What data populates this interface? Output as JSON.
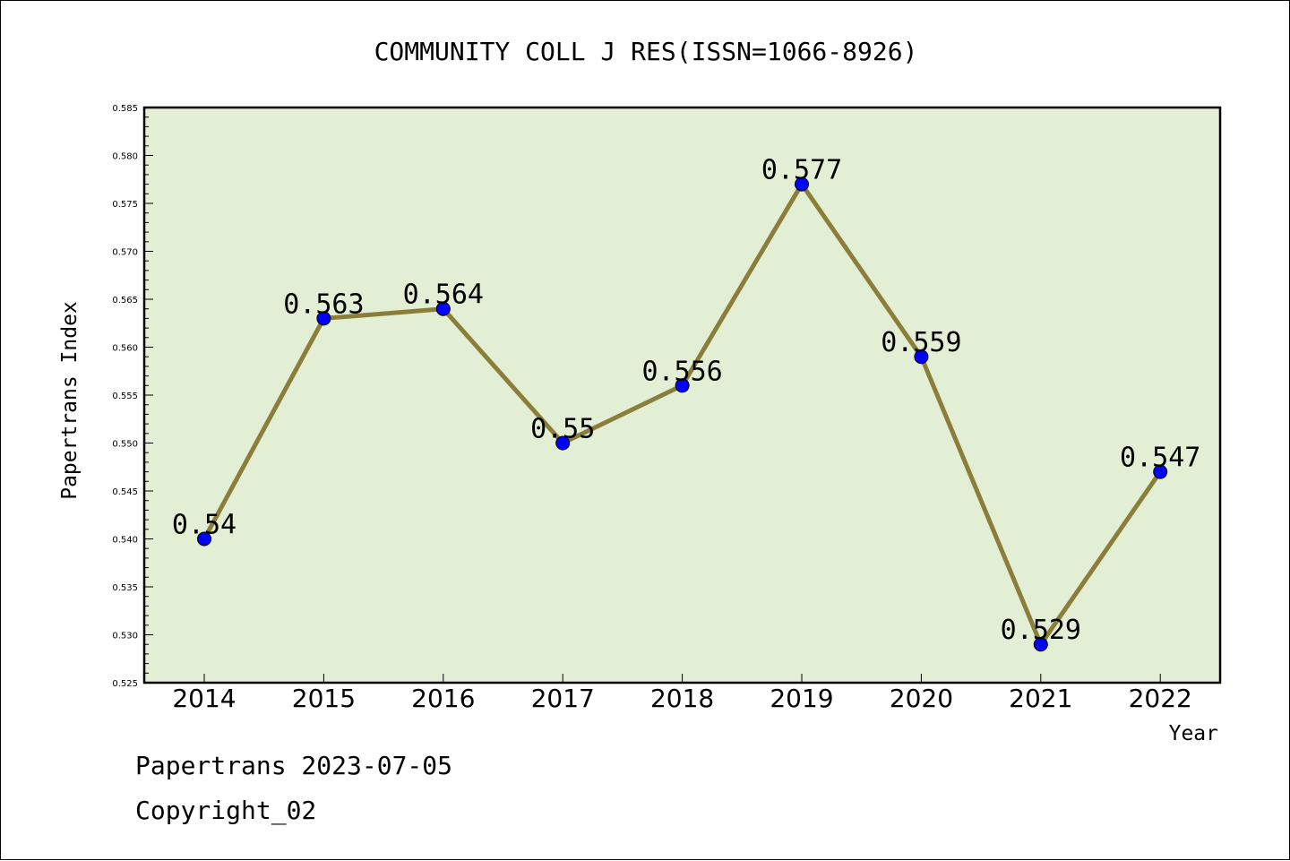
{
  "chart_data": {
    "type": "line",
    "title": "COMMUNITY COLL J RES(ISSN=1066-8926)",
    "xlabel": "Year",
    "ylabel": "Papertrans Index",
    "categories": [
      "2014",
      "2015",
      "2016",
      "2017",
      "2018",
      "2019",
      "2020",
      "2021",
      "2022"
    ],
    "series": [
      {
        "values": [
          0.54,
          0.563,
          0.564,
          0.55,
          0.556,
          0.577,
          0.559,
          0.529,
          0.547
        ],
        "data_labels": [
          "0.54",
          "0.563",
          "0.564",
          "0.55",
          "0.556",
          "0.577",
          "0.559",
          "0.529",
          "0.547"
        ]
      }
    ],
    "ylim": [
      0.525,
      0.585
    ],
    "yticks": [
      "0.525",
      "0.530",
      "0.535",
      "0.540",
      "0.545",
      "0.550",
      "0.555",
      "0.560",
      "0.565",
      "0.570",
      "0.575",
      "0.580",
      "0.585"
    ],
    "grid": false,
    "colors": {
      "plot_background": "#e2efd5",
      "line": "#8b7d3a",
      "marker": "#0000ff"
    }
  },
  "footer": {
    "line1": "Papertrans 2023-07-05",
    "line2": "Copyright_02"
  }
}
